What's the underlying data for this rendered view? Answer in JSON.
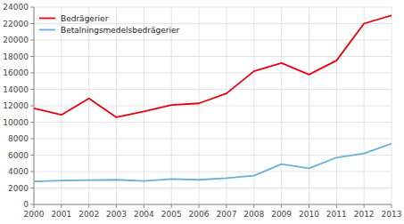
{
  "chart_data": {
    "type": "line",
    "x": [
      2000,
      2001,
      2002,
      2003,
      2004,
      2005,
      2006,
      2007,
      2008,
      2009,
      2010,
      2011,
      2012,
      2013
    ],
    "series": [
      {
        "name": "Bedrägerier",
        "color": "#e8000d",
        "values": [
          11700,
          10900,
          12900,
          10600,
          11300,
          12100,
          12300,
          13500,
          16200,
          17200,
          15800,
          17500,
          22000,
          23000
        ]
      },
      {
        "name": "Betalningsmedelsbedrägerier",
        "color": "#6ab0d4",
        "values": [
          2800,
          2900,
          2950,
          3000,
          2850,
          3100,
          3000,
          3200,
          3500,
          4900,
          4400,
          5700,
          6200,
          7400
        ]
      }
    ],
    "xlim": [
      2000,
      2013
    ],
    "xticks": [
      2000,
      2001,
      2002,
      2003,
      2004,
      2005,
      2006,
      2007,
      2008,
      2009,
      2010,
      2011,
      2012,
      2013
    ],
    "ylim": [
      0,
      24000
    ],
    "yticks": [
      0,
      2000,
      4000,
      6000,
      8000,
      10000,
      12000,
      14000,
      16000,
      18000,
      20000,
      22000,
      24000
    ],
    "grid": true,
    "legend": "upper-left"
  }
}
